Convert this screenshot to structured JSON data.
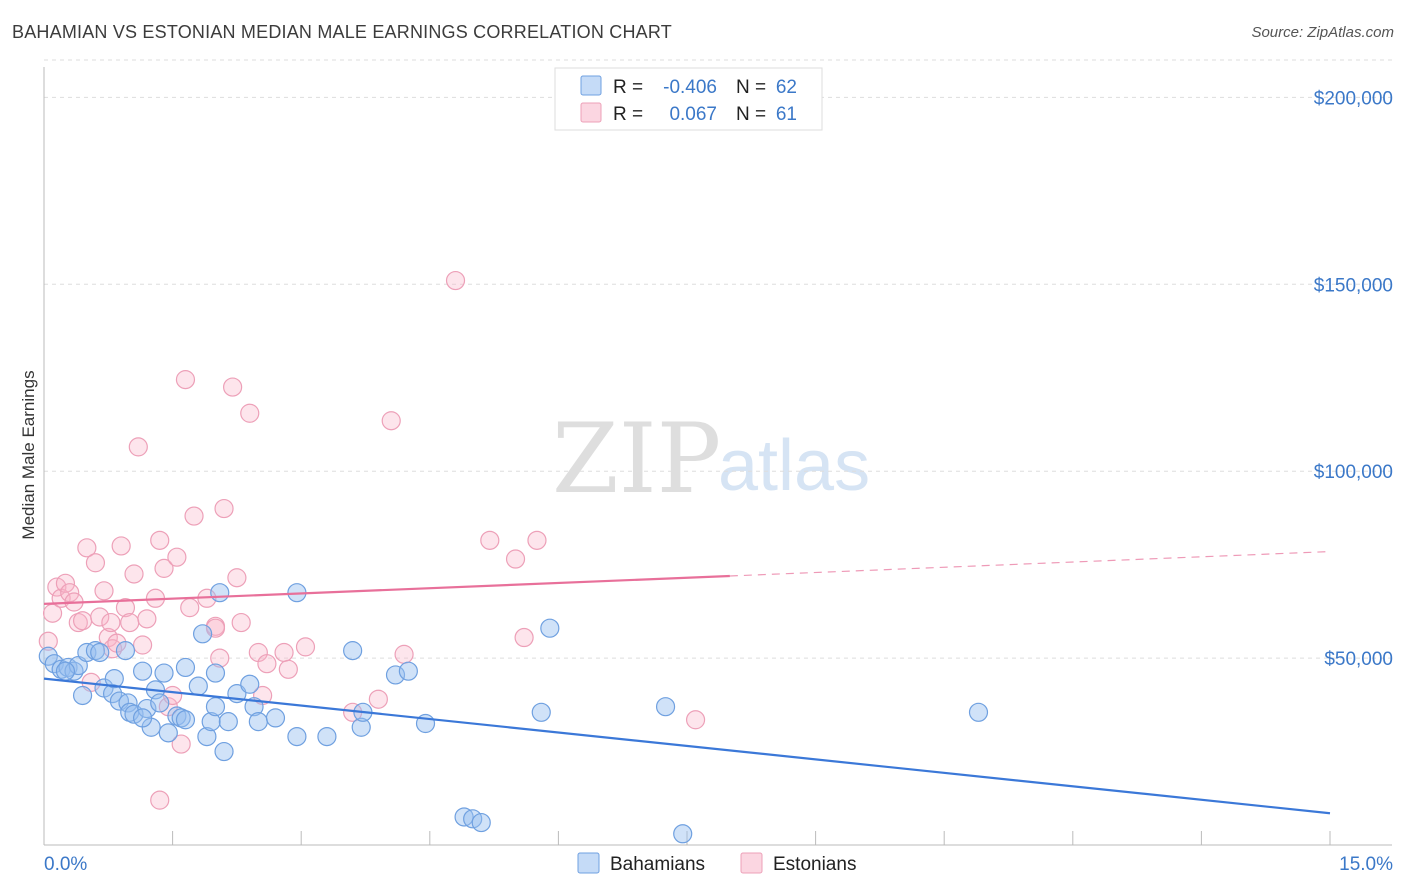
{
  "title": "BAHAMIAN VS ESTONIAN MEDIAN MALE EARNINGS CORRELATION CHART",
  "source": "Source: ZipAtlas.com",
  "watermark": {
    "zip": "ZIP",
    "atlas": "atlas"
  },
  "colors": {
    "blue": "#3b78d8",
    "blue_fill": "rgba(150,190,240,0.45)",
    "blue_stroke": "#6fa0e0",
    "pink": "#e8709a",
    "pink_fill": "rgba(248,180,200,0.35)",
    "pink_stroke": "#eda0b8",
    "label": "#3b78c8",
    "grid": "#dddddd"
  },
  "legend_top": {
    "rows": [
      {
        "r_label": "R =",
        "r_value": "-0.406",
        "n_label": "N =",
        "n_value": "62"
      },
      {
        "r_label": "R =",
        "r_value": "0.067",
        "n_label": "N =",
        "n_value": "61"
      }
    ]
  },
  "legend_bottom": {
    "bahamians": "Bahamians",
    "estonians": "Estonians"
  },
  "chart_data": {
    "type": "scatter",
    "title": "BAHAMIAN VS ESTONIAN MEDIAN MALE EARNINGS CORRELATION CHART",
    "xlabel": "",
    "ylabel": "Median Male Earnings",
    "xlim": [
      0,
      15
    ],
    "ylim": [
      0,
      210000
    ],
    "x_tick_labels": [
      "0.0%",
      "15.0%"
    ],
    "y_ticks": [
      50000,
      100000,
      150000,
      200000
    ],
    "y_tick_labels": [
      "$50,000",
      "$100,000",
      "$150,000",
      "$200,000"
    ],
    "grid": true,
    "legend": "top-center",
    "series": [
      {
        "name": "Bahamians",
        "r": -0.406,
        "n": 62,
        "trend": {
          "x0": 0,
          "y0": 44500,
          "x1": 15,
          "y1": 8500,
          "dashed_from": 15
        },
        "points": [
          [
            0.05,
            50500
          ],
          [
            0.12,
            48500
          ],
          [
            0.2,
            47000
          ],
          [
            0.28,
            47500
          ],
          [
            0.35,
            46500
          ],
          [
            0.4,
            48000
          ],
          [
            0.45,
            40000
          ],
          [
            0.5,
            51500
          ],
          [
            0.6,
            52000
          ],
          [
            0.65,
            51500
          ],
          [
            0.7,
            42000
          ],
          [
            0.8,
            40500
          ],
          [
            0.82,
            44500
          ],
          [
            0.88,
            38500
          ],
          [
            0.95,
            52000
          ],
          [
            0.98,
            38000
          ],
          [
            1.0,
            35500
          ],
          [
            1.05,
            35000
          ],
          [
            1.15,
            46500
          ],
          [
            1.2,
            36500
          ],
          [
            1.25,
            31500
          ],
          [
            1.3,
            41500
          ],
          [
            1.35,
            38000
          ],
          [
            1.4,
            46000
          ],
          [
            1.45,
            30000
          ],
          [
            1.55,
            34500
          ],
          [
            1.6,
            34000
          ],
          [
            1.65,
            33500
          ],
          [
            1.65,
            47500
          ],
          [
            1.8,
            42500
          ],
          [
            1.85,
            56500
          ],
          [
            1.9,
            29000
          ],
          [
            1.95,
            33000
          ],
          [
            2.0,
            37000
          ],
          [
            2.0,
            46000
          ],
          [
            2.1,
            25000
          ],
          [
            2.15,
            33000
          ],
          [
            2.25,
            40500
          ],
          [
            2.4,
            43000
          ],
          [
            2.45,
            37000
          ],
          [
            2.5,
            33000
          ],
          [
            2.7,
            34000
          ],
          [
            2.95,
            67500
          ],
          [
            2.95,
            29000
          ],
          [
            3.3,
            29000
          ],
          [
            3.6,
            52000
          ],
          [
            3.7,
            31500
          ],
          [
            3.72,
            35500
          ],
          [
            4.1,
            45500
          ],
          [
            4.25,
            46500
          ],
          [
            4.45,
            32500
          ],
          [
            4.9,
            7500
          ],
          [
            5.0,
            7000
          ],
          [
            5.1,
            6000
          ],
          [
            5.8,
            35500
          ],
          [
            5.9,
            58000
          ],
          [
            7.25,
            37000
          ],
          [
            7.45,
            3000
          ],
          [
            10.9,
            35500
          ],
          [
            2.05,
            67500
          ],
          [
            0.25,
            46500
          ],
          [
            1.15,
            34000
          ]
        ]
      },
      {
        "name": "Estonians",
        "r": 0.067,
        "n": 61,
        "trend": {
          "x0": 0,
          "y0": 64500,
          "x1": 15,
          "y1": 78500,
          "dashed_from": 8.0
        },
        "points": [
          [
            0.05,
            54500
          ],
          [
            0.1,
            62000
          ],
          [
            0.15,
            69000
          ],
          [
            0.2,
            66000
          ],
          [
            0.25,
            70000
          ],
          [
            0.3,
            67500
          ],
          [
            0.35,
            65000
          ],
          [
            0.4,
            59500
          ],
          [
            0.45,
            60000
          ],
          [
            0.5,
            79500
          ],
          [
            0.55,
            43500
          ],
          [
            0.6,
            75500
          ],
          [
            0.65,
            61000
          ],
          [
            0.7,
            68000
          ],
          [
            0.75,
            55500
          ],
          [
            0.78,
            59500
          ],
          [
            0.8,
            52500
          ],
          [
            0.85,
            54000
          ],
          [
            0.9,
            80000
          ],
          [
            0.95,
            63500
          ],
          [
            1.0,
            59500
          ],
          [
            1.05,
            72500
          ],
          [
            1.1,
            106500
          ],
          [
            1.15,
            53500
          ],
          [
            1.2,
            60500
          ],
          [
            1.3,
            66000
          ],
          [
            1.35,
            81500
          ],
          [
            1.4,
            74000
          ],
          [
            1.45,
            37000
          ],
          [
            1.5,
            40000
          ],
          [
            1.55,
            77000
          ],
          [
            1.6,
            27000
          ],
          [
            1.65,
            124500
          ],
          [
            1.7,
            63500
          ],
          [
            1.75,
            88000
          ],
          [
            1.9,
            66000
          ],
          [
            2.0,
            58500
          ],
          [
            2.05,
            50000
          ],
          [
            2.1,
            90000
          ],
          [
            2.2,
            122500
          ],
          [
            2.25,
            71500
          ],
          [
            2.3,
            59500
          ],
          [
            2.4,
            115500
          ],
          [
            2.5,
            51500
          ],
          [
            2.55,
            40000
          ],
          [
            2.6,
            48500
          ],
          [
            2.8,
            51500
          ],
          [
            2.85,
            47000
          ],
          [
            3.05,
            53000
          ],
          [
            3.6,
            35500
          ],
          [
            3.9,
            39000
          ],
          [
            4.05,
            113500
          ],
          [
            4.2,
            51000
          ],
          [
            4.8,
            151000
          ],
          [
            5.2,
            81500
          ],
          [
            5.5,
            76500
          ],
          [
            5.6,
            55500
          ],
          [
            5.75,
            81500
          ],
          [
            7.6,
            33500
          ],
          [
            1.35,
            12000
          ],
          [
            2.0,
            58000
          ]
        ]
      }
    ]
  }
}
